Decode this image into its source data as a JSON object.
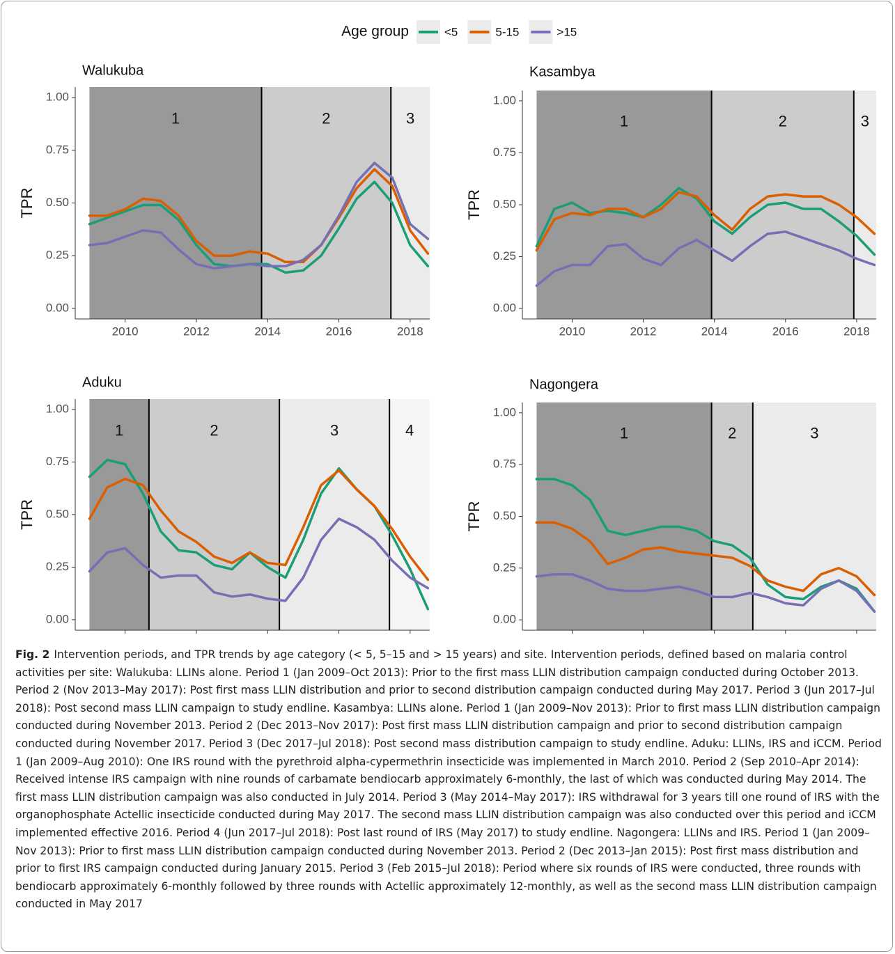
{
  "legend": {
    "title": "Age group",
    "series": [
      {
        "name": "<5",
        "color": "#1b9e77"
      },
      {
        "name": "5-15",
        "color": "#d95f02"
      },
      {
        "name": ">15",
        "color": "#7570b3"
      }
    ]
  },
  "chart_data": [
    {
      "type": "line",
      "title": "Walukuba",
      "y_label": "TPR",
      "x": [
        2009,
        2009.5,
        2010,
        2010.5,
        2011,
        2011.5,
        2012,
        2012.5,
        2013,
        2013.5,
        2014,
        2014.5,
        2015,
        2015.5,
        2016,
        2016.5,
        2017,
        2017.5,
        2018,
        2018.5
      ],
      "series": [
        {
          "values": [
            0.4,
            0.43,
            0.46,
            0.49,
            0.49,
            0.42,
            0.3,
            0.21,
            0.2,
            0.21,
            0.21,
            0.17,
            0.18,
            0.25,
            0.38,
            0.52,
            0.6,
            0.5,
            0.3,
            0.2
          ]
        },
        {
          "values": [
            0.44,
            0.44,
            0.47,
            0.52,
            0.51,
            0.44,
            0.32,
            0.25,
            0.25,
            0.27,
            0.26,
            0.22,
            0.22,
            0.3,
            0.43,
            0.57,
            0.66,
            0.58,
            0.37,
            0.26
          ]
        },
        {
          "values": [
            0.3,
            0.31,
            0.34,
            0.37,
            0.36,
            0.28,
            0.21,
            0.19,
            0.2,
            0.21,
            0.2,
            0.2,
            0.23,
            0.3,
            0.44,
            0.6,
            0.69,
            0.62,
            0.4,
            0.33
          ]
        }
      ],
      "periods": [
        {
          "label": "1",
          "start": 2009,
          "end": 2013.83,
          "color": "#999999"
        },
        {
          "label": "2",
          "start": 2013.83,
          "end": 2017.46,
          "color": "#cccccc"
        },
        {
          "label": "3",
          "start": 2017.46,
          "end": 2018.55,
          "color": "#ebebeb"
        }
      ],
      "xlim": [
        2008.6,
        2018.55
      ],
      "ylim": [
        -0.05,
        1.05
      ],
      "xticks": [
        2010,
        2012,
        2014,
        2016,
        2018
      ],
      "yticks": [
        {
          "value": 0,
          "label": "0.00"
        },
        {
          "value": 0.25,
          "label": "0.25"
        },
        {
          "value": 0.5,
          "label": "0.50"
        },
        {
          "value": 0.75,
          "label": "0.75"
        },
        {
          "value": 1,
          "label": "1.00"
        }
      ]
    },
    {
      "type": "line",
      "title": "Kasambya",
      "y_label": "TPR",
      "x": [
        2009,
        2009.5,
        2010,
        2010.5,
        2011,
        2011.5,
        2012,
        2012.5,
        2013,
        2013.5,
        2014,
        2014.5,
        2015,
        2015.5,
        2016,
        2016.5,
        2017,
        2017.5,
        2018,
        2018.5
      ],
      "series": [
        {
          "values": [
            0.3,
            0.48,
            0.51,
            0.46,
            0.47,
            0.46,
            0.44,
            0.5,
            0.58,
            0.53,
            0.42,
            0.36,
            0.44,
            0.5,
            0.51,
            0.48,
            0.48,
            0.42,
            0.35,
            0.26
          ]
        },
        {
          "values": [
            0.28,
            0.43,
            0.46,
            0.45,
            0.48,
            0.48,
            0.44,
            0.48,
            0.56,
            0.54,
            0.45,
            0.38,
            0.48,
            0.54,
            0.55,
            0.54,
            0.54,
            0.5,
            0.44,
            0.36
          ]
        },
        {
          "values": [
            0.11,
            0.18,
            0.21,
            0.21,
            0.3,
            0.31,
            0.24,
            0.21,
            0.29,
            0.33,
            0.28,
            0.23,
            0.3,
            0.36,
            0.37,
            0.34,
            0.31,
            0.28,
            0.24,
            0.21
          ]
        }
      ],
      "periods": [
        {
          "label": "1",
          "start": 2009,
          "end": 2013.92,
          "color": "#999999"
        },
        {
          "label": "2",
          "start": 2013.92,
          "end": 2017.92,
          "color": "#cccccc"
        },
        {
          "label": "3",
          "start": 2017.92,
          "end": 2018.55,
          "color": "#ebebeb"
        }
      ],
      "xlim": [
        2008.6,
        2018.55
      ],
      "ylim": [
        -0.05,
        1.05
      ],
      "xticks": [
        2010,
        2012,
        2014,
        2016,
        2018
      ],
      "yticks": [
        {
          "value": 0,
          "label": "0.00"
        },
        {
          "value": 0.25,
          "label": "0.25"
        },
        {
          "value": 0.5,
          "label": "0.50"
        },
        {
          "value": 0.75,
          "label": "0.75"
        },
        {
          "value": 1,
          "label": "1.00"
        }
      ]
    },
    {
      "type": "line",
      "title": "Aduku",
      "y_label": "TPR",
      "x": [
        2009,
        2009.5,
        2010,
        2010.5,
        2011,
        2011.5,
        2012,
        2012.5,
        2013,
        2013.5,
        2014,
        2014.5,
        2015,
        2015.5,
        2016,
        2016.5,
        2017,
        2017.5,
        2018,
        2018.5
      ],
      "series": [
        {
          "values": [
            0.68,
            0.76,
            0.74,
            0.6,
            0.42,
            0.33,
            0.32,
            0.26,
            0.24,
            0.32,
            0.25,
            0.2,
            0.38,
            0.6,
            0.72,
            0.62,
            0.54,
            0.4,
            0.24,
            0.05
          ]
        },
        {
          "values": [
            0.48,
            0.63,
            0.67,
            0.64,
            0.52,
            0.42,
            0.37,
            0.3,
            0.27,
            0.32,
            0.27,
            0.26,
            0.44,
            0.64,
            0.71,
            0.62,
            0.54,
            0.43,
            0.3,
            0.19
          ]
        },
        {
          "values": [
            0.23,
            0.32,
            0.34,
            0.26,
            0.2,
            0.21,
            0.21,
            0.13,
            0.11,
            0.12,
            0.1,
            0.09,
            0.2,
            0.38,
            0.48,
            0.44,
            0.38,
            0.28,
            0.2,
            0.15
          ]
        }
      ],
      "periods": [
        {
          "label": "1",
          "start": 2009,
          "end": 2010.67,
          "color": "#999999"
        },
        {
          "label": "2",
          "start": 2010.67,
          "end": 2014.33,
          "color": "#cccccc"
        },
        {
          "label": "3",
          "start": 2014.33,
          "end": 2017.42,
          "color": "#ebebeb"
        },
        {
          "label": "4",
          "start": 2017.42,
          "end": 2018.55,
          "color": "#f5f5f5"
        }
      ],
      "xlim": [
        2008.6,
        2018.55
      ],
      "ylim": [
        -0.05,
        1.05
      ],
      "xticks": [
        2010,
        2012,
        2014,
        2016,
        2018
      ],
      "yticks": [
        {
          "value": 0,
          "label": "0.00"
        },
        {
          "value": 0.25,
          "label": "0.25"
        },
        {
          "value": 0.5,
          "label": "0.50"
        },
        {
          "value": 0.75,
          "label": "0.75"
        },
        {
          "value": 1,
          "label": "1.00"
        }
      ]
    },
    {
      "type": "line",
      "title": "Nagongera",
      "y_label": "TPR",
      "x": [
        2009,
        2009.5,
        2010,
        2010.5,
        2011,
        2011.5,
        2012,
        2012.5,
        2013,
        2013.5,
        2014,
        2014.5,
        2015,
        2015.5,
        2016,
        2016.5,
        2017,
        2017.5,
        2018,
        2018.5
      ],
      "series": [
        {
          "values": [
            0.68,
            0.68,
            0.65,
            0.58,
            0.43,
            0.41,
            0.43,
            0.45,
            0.45,
            0.43,
            0.38,
            0.36,
            0.3,
            0.17,
            0.11,
            0.1,
            0.16,
            0.19,
            0.15,
            0.04
          ]
        },
        {
          "values": [
            0.47,
            0.47,
            0.44,
            0.38,
            0.27,
            0.3,
            0.34,
            0.35,
            0.33,
            0.32,
            0.31,
            0.3,
            0.26,
            0.19,
            0.16,
            0.14,
            0.22,
            0.25,
            0.21,
            0.12
          ]
        },
        {
          "values": [
            0.21,
            0.22,
            0.22,
            0.19,
            0.15,
            0.14,
            0.14,
            0.15,
            0.16,
            0.14,
            0.11,
            0.11,
            0.13,
            0.11,
            0.08,
            0.07,
            0.15,
            0.19,
            0.14,
            0.04
          ]
        }
      ],
      "periods": [
        {
          "label": "1",
          "start": 2009,
          "end": 2013.92,
          "color": "#999999"
        },
        {
          "label": "2",
          "start": 2013.92,
          "end": 2015.08,
          "color": "#cccccc"
        },
        {
          "label": "3",
          "start": 2015.08,
          "end": 2018.55,
          "color": "#ebebeb"
        }
      ],
      "xlim": [
        2008.6,
        2018.55
      ],
      "ylim": [
        -0.05,
        1.05
      ],
      "xticks": [
        2010,
        2012,
        2014,
        2016,
        2018
      ],
      "yticks": [
        {
          "value": 0,
          "label": "0.00"
        },
        {
          "value": 0.25,
          "label": "0.25"
        },
        {
          "value": 0.5,
          "label": "0.50"
        },
        {
          "value": 0.75,
          "label": "0.75"
        },
        {
          "value": 1,
          "label": "1.00"
        }
      ]
    }
  ],
  "caption": {
    "label": "Fig. 2",
    "text": "Intervention periods, and TPR trends by age category (< 5, 5–15 and > 15 years) and site. Intervention periods, defined based on malaria control activities per site: Walukuba: LLINs alone. Period 1 (Jan 2009–Oct 2013): Prior to the first mass LLIN distribution campaign conducted during October 2013. Period 2 (Nov 2013–May 2017): Post first mass LLIN distribution and prior to second distribution campaign conducted during May 2017. Period 3 (Jun 2017–Jul 2018): Post second mass LLIN campaign to study endline. Kasambya: LLINs alone. Period 1 (Jan 2009–Nov 2013): Prior to first mass LLIN distribution campaign conducted during November 2013. Period 2 (Dec 2013–Nov 2017): Post first mass LLIN distribution campaign and prior to second distribution campaign conducted during November 2017. Period 3 (Dec 2017–Jul 2018): Post second mass distribution campaign to study endline. Aduku: LLINs, IRS and iCCM. Period 1 (Jan 2009–Aug 2010): One IRS round with the pyrethroid alpha-cypermethrin insecticide was implemented in March 2010. Period 2 (Sep 2010–Apr 2014): Received intense IRS campaign with nine rounds of carbamate bendiocarb approximately 6-monthly, the last of which was conducted during May 2014. The first mass LLIN distribution campaign was also conducted in July 2014. Period 3 (May 2014–May 2017): IRS withdrawal for 3 years till one round of IRS with the organophosphate Actellic insecticide conducted during May 2017. The second mass LLIN distribution campaign was also conducted over this period and iCCM implemented effective 2016. Period 4 (Jun 2017–Jul 2018): Post last round of IRS (May 2017) to study endline. Nagongera: LLINs and IRS. Period 1 (Jan 2009–Nov 2013): Prior to first mass LLIN distribution campaign conducted during November 2013. Period 2 (Dec 2013–Jan 2015): Post first mass distribution and prior to first IRS campaign conducted during January 2015. Period 3 (Feb 2015–Jul 2018): Period where six rounds of IRS were conducted, three rounds with bendiocarb approximately 6-monthly followed by three rounds with Actellic approximately 12-monthly, as well as the second mass LLIN distribution campaign conducted in May 2017"
  }
}
